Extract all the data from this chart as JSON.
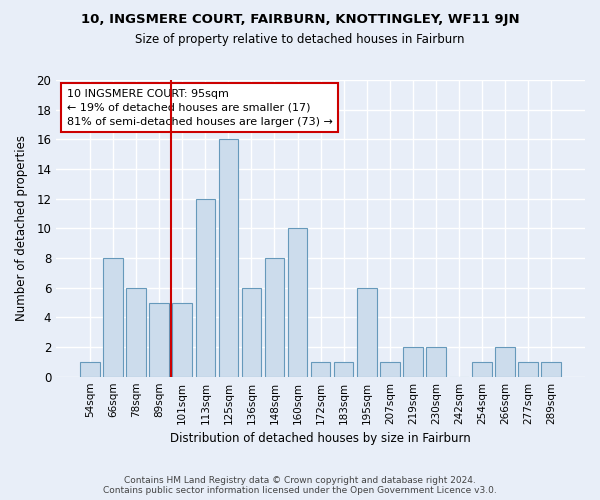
{
  "title": "10, INGSMERE COURT, FAIRBURN, KNOTTINGLEY, WF11 9JN",
  "subtitle": "Size of property relative to detached houses in Fairburn",
  "xlabel": "Distribution of detached houses by size in Fairburn",
  "ylabel": "Number of detached properties",
  "bar_labels": [
    "54sqm",
    "66sqm",
    "78sqm",
    "89sqm",
    "101sqm",
    "113sqm",
    "125sqm",
    "136sqm",
    "148sqm",
    "160sqm",
    "172sqm",
    "183sqm",
    "195sqm",
    "207sqm",
    "219sqm",
    "230sqm",
    "242sqm",
    "254sqm",
    "266sqm",
    "277sqm",
    "289sqm"
  ],
  "bar_values": [
    1,
    8,
    6,
    5,
    5,
    12,
    16,
    6,
    8,
    10,
    1,
    1,
    6,
    1,
    2,
    2,
    0,
    1,
    2,
    1,
    1
  ],
  "bar_color": "#ccdcec",
  "bar_edge_color": "#6699bb",
  "background_color": "#e8eef8",
  "grid_color": "#ffffff",
  "red_line_x": 3.5,
  "annotation_line1": "10 INGSMERE COURT: 95sqm",
  "annotation_line2": "← 19% of detached houses are smaller (17)",
  "annotation_line3": "81% of semi-detached houses are larger (73) →",
  "annotation_box_color": "#ffffff",
  "annotation_box_edge": "#cc0000",
  "red_line_color": "#cc0000",
  "ylim": [
    0,
    20
  ],
  "yticks": [
    0,
    2,
    4,
    6,
    8,
    10,
    12,
    14,
    16,
    18,
    20
  ],
  "footer": "Contains HM Land Registry data © Crown copyright and database right 2024.\nContains public sector information licensed under the Open Government Licence v3.0."
}
